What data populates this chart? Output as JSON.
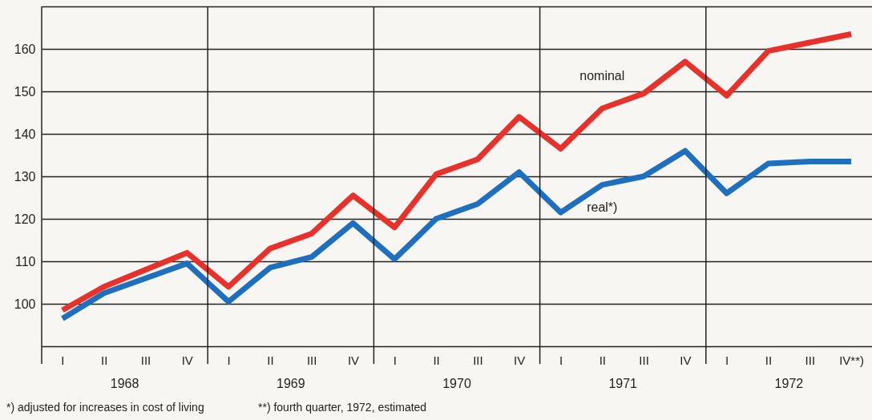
{
  "chart_data": {
    "type": "line",
    "categories": [
      "I",
      "II",
      "III",
      "IV",
      "I",
      "II",
      "III",
      "IV",
      "I",
      "II",
      "III",
      "IV",
      "I",
      "II",
      "III",
      "IV",
      "I",
      "II",
      "III",
      "IV**)"
    ],
    "series": [
      {
        "name": "nominal",
        "color": "#e8312a",
        "values": [
          98.5,
          104,
          108,
          112,
          104,
          113,
          116.5,
          125.5,
          118,
          130.5,
          134,
          144,
          136.5,
          146,
          149.5,
          157,
          149,
          159.5,
          161.5,
          163.5
        ]
      },
      {
        "name": "real*)",
        "color": "#1f6fc0",
        "values": [
          96.5,
          102.5,
          106,
          109.5,
          100.5,
          108.5,
          111,
          119,
          110.5,
          120,
          123.5,
          131,
          121.5,
          128,
          130,
          136,
          126,
          133,
          133.5,
          133.5
        ]
      }
    ],
    "ylim": [
      90,
      170
    ],
    "yticks": [
      {
        "value": 90,
        "label": null
      },
      100,
      110,
      120,
      130,
      140,
      150,
      160,
      {
        "value": 170,
        "label": null
      }
    ],
    "grid": true,
    "line_style": "solid",
    "marker": "none",
    "annotations": [
      "1968",
      "1969",
      "1970",
      "1971",
      "1972",
      "*) adjusted for increases in cost of living",
      "**) fourth quarter, 1972, estimated"
    ]
  }
}
